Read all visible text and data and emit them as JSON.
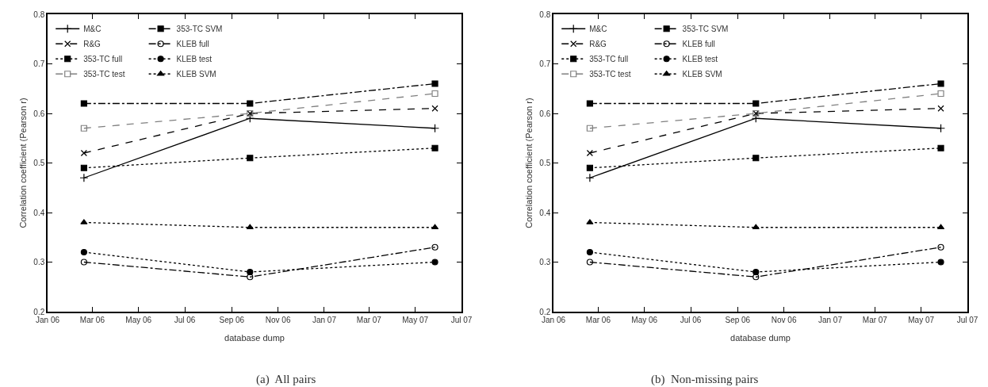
{
  "chart_data": [
    {
      "type": "line",
      "title": "(a)  All pairs",
      "xlabel": "database dump",
      "ylabel": "Correlation coefficient (Pearson r)",
      "x": [
        "2006-02-18",
        "2006-09-25",
        "2007-05-27"
      ],
      "series": [
        {
          "name": "M&C",
          "color": "#000000",
          "values": [
            0.47,
            0.59,
            0.57
          ],
          "marker": "cross",
          "line_style": "solid"
        },
        {
          "name": "R&G",
          "color": "#000000",
          "values": [
            0.52,
            0.6,
            0.61
          ],
          "marker": "x",
          "line_style": "dashed"
        },
        {
          "name": "353-TC full",
          "color": "#000000",
          "values": [
            0.49,
            0.51,
            0.53
          ],
          "marker": "square",
          "line_style": "dotted"
        },
        {
          "name": "353-TC test",
          "color": "#808080",
          "values": [
            0.57,
            0.6,
            0.64
          ],
          "marker": "square-open",
          "line_style": "dashed"
        },
        {
          "name": "353-TC SVM",
          "color": "#000000",
          "values": [
            0.62,
            0.62,
            0.66
          ],
          "marker": "square",
          "line_style": "dashdot"
        },
        {
          "name": "KLEB full",
          "color": "#000000",
          "values": [
            0.3,
            0.27,
            0.33
          ],
          "marker": "circle-open",
          "line_style": "dashdot"
        },
        {
          "name": "KLEB test",
          "color": "#000000",
          "values": [
            0.32,
            0.28,
            0.3
          ],
          "marker": "circle",
          "line_style": "dotted"
        },
        {
          "name": "KLEB SVM",
          "color": "#000000",
          "values": [
            0.38,
            0.37,
            0.37
          ],
          "marker": "triangle",
          "line_style": "dotted"
        }
      ],
      "xlim": [
        "2006-01-01",
        "2007-07-01"
      ],
      "xticks": [
        {
          "value": "2006-01-01",
          "label": "Jan 06"
        },
        {
          "value": "2006-03-01",
          "label": "Mar 06"
        },
        {
          "value": "2006-05-01",
          "label": "May 06"
        },
        {
          "value": "2006-07-01",
          "label": "Jul 06"
        },
        {
          "value": "2006-09-01",
          "label": "Sep 06"
        },
        {
          "value": "2006-11-01",
          "label": "Nov 06"
        },
        {
          "value": "2007-01-01",
          "label": "Jan 07"
        },
        {
          "value": "2007-03-01",
          "label": "Mar 07"
        },
        {
          "value": "2007-05-01",
          "label": "May 07"
        },
        {
          "value": "2007-07-01",
          "label": "Jul 07"
        }
      ],
      "ylim": [
        0.2,
        0.8
      ],
      "yticks": [
        0.2,
        0.3,
        0.4,
        0.5,
        0.6,
        0.7,
        0.8
      ],
      "legend": "top left"
    },
    {
      "type": "line",
      "title": "(b)  Non-missing pairs",
      "xlabel": "database dump",
      "ylabel": "Correlation coefficient (Pearson r)",
      "x": [
        "2006-02-18",
        "2006-09-25",
        "2007-05-27"
      ],
      "series": [
        {
          "name": "M&C",
          "color": "#000000",
          "values": [
            0.47,
            0.59,
            0.57
          ],
          "marker": "cross",
          "line_style": "solid"
        },
        {
          "name": "R&G",
          "color": "#000000",
          "values": [
            0.52,
            0.6,
            0.61
          ],
          "marker": "x",
          "line_style": "dashed"
        },
        {
          "name": "353-TC full",
          "color": "#000000",
          "values": [
            0.49,
            0.51,
            0.53
          ],
          "marker": "square",
          "line_style": "dotted"
        },
        {
          "name": "353-TC test",
          "color": "#808080",
          "values": [
            0.57,
            0.6,
            0.64
          ],
          "marker": "square-open",
          "line_style": "dashed"
        },
        {
          "name": "353-TC SVM",
          "color": "#000000",
          "values": [
            0.62,
            0.62,
            0.66
          ],
          "marker": "square",
          "line_style": "dashdot"
        },
        {
          "name": "KLEB full",
          "color": "#000000",
          "values": [
            0.3,
            0.27,
            0.33
          ],
          "marker": "circle-open",
          "line_style": "dashdot"
        },
        {
          "name": "KLEB test",
          "color": "#000000",
          "values": [
            0.32,
            0.28,
            0.3
          ],
          "marker": "circle",
          "line_style": "dotted"
        },
        {
          "name": "KLEB SVM",
          "color": "#000000",
          "values": [
            0.38,
            0.37,
            0.37
          ],
          "marker": "triangle",
          "line_style": "dotted"
        }
      ],
      "xlim": [
        "2006-01-01",
        "2007-07-01"
      ],
      "xticks": [
        {
          "value": "2006-01-01",
          "label": "Jan 06"
        },
        {
          "value": "2006-03-01",
          "label": "Mar 06"
        },
        {
          "value": "2006-05-01",
          "label": "May 06"
        },
        {
          "value": "2006-07-01",
          "label": "Jul 06"
        },
        {
          "value": "2006-09-01",
          "label": "Sep 06"
        },
        {
          "value": "2006-11-01",
          "label": "Nov 06"
        },
        {
          "value": "2007-01-01",
          "label": "Jan 07"
        },
        {
          "value": "2007-03-01",
          "label": "Mar 07"
        },
        {
          "value": "2007-05-01",
          "label": "May 07"
        },
        {
          "value": "2007-07-01",
          "label": "Jul 07"
        }
      ],
      "ylim": [
        0.2,
        0.8
      ],
      "yticks": [
        0.2,
        0.3,
        0.4,
        0.5,
        0.6,
        0.7,
        0.8
      ],
      "legend": "top left"
    }
  ]
}
